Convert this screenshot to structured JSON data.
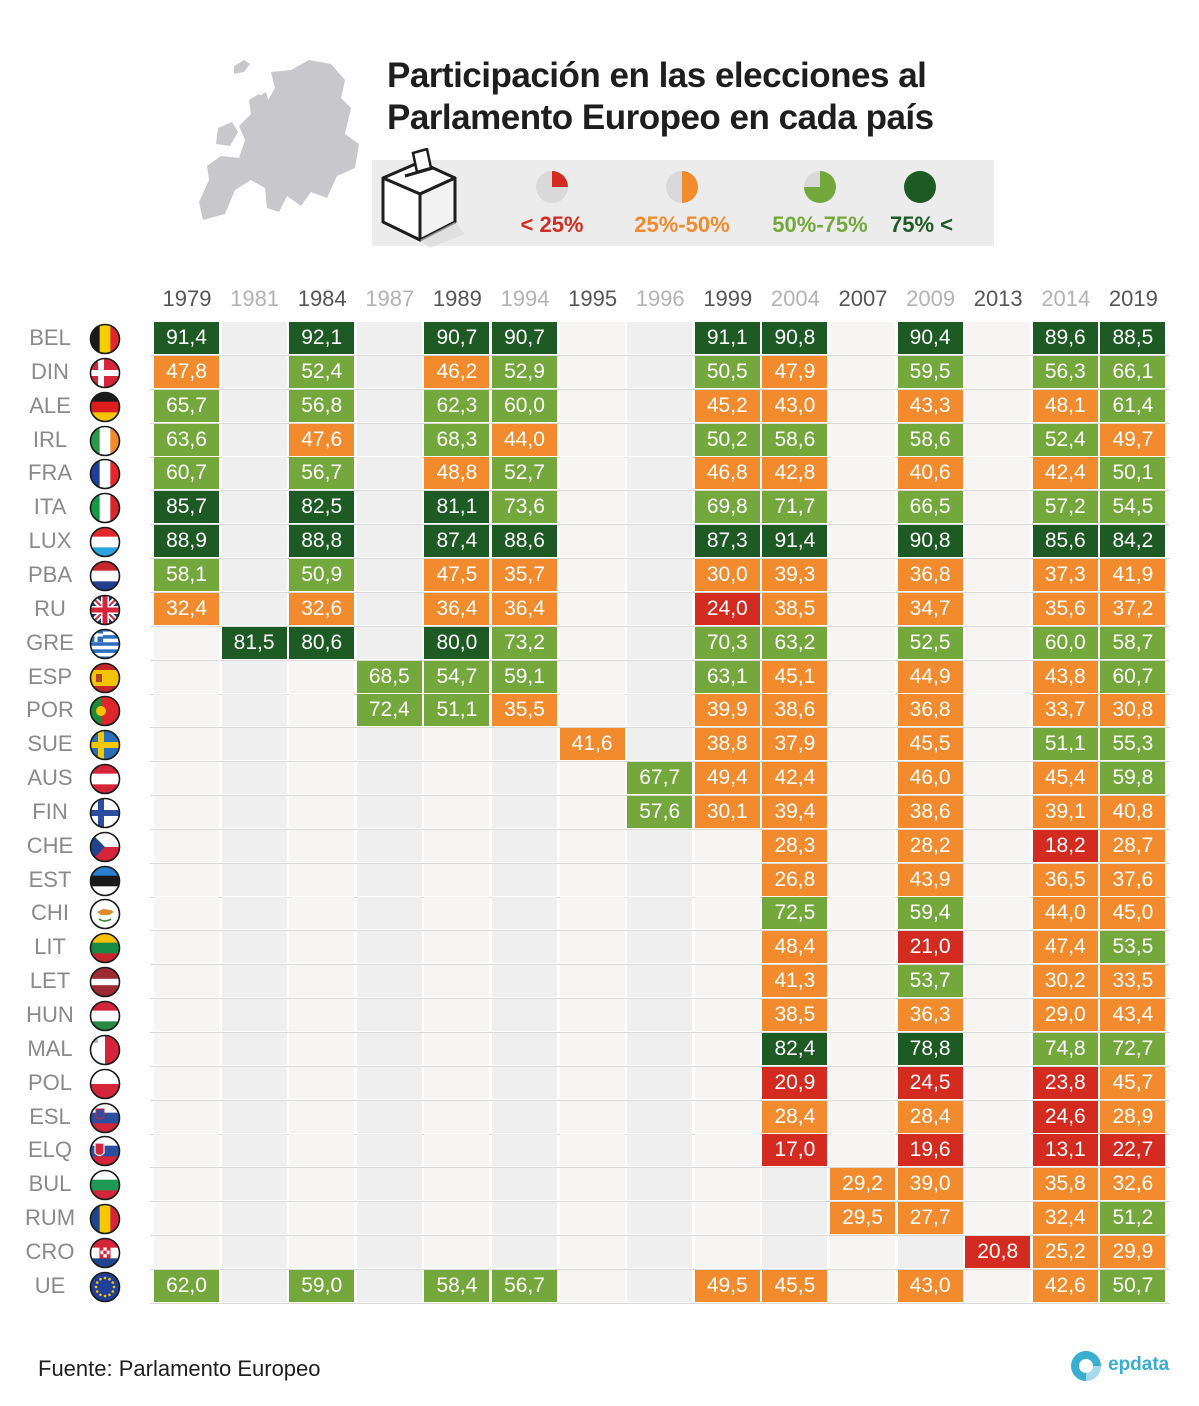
{
  "title": "Participación en las elecciones al Parlamento Europeo en cada país",
  "legend": [
    {
      "label": "< 25%",
      "color": "#d42b20"
    },
    {
      "label": "25%-50%",
      "color": "#f28a2e"
    },
    {
      "label": "50%-75%",
      "color": "#74a83c"
    },
    {
      "label": "75% <",
      "color": "#1d5a24"
    }
  ],
  "colors": {
    "low": "#d42b20",
    "mid_low": "#f28a2e",
    "mid_high": "#74a83c",
    "high": "#1d5a24",
    "empty_band_a": "#f7f4f4",
    "empty_band_b": "#efefef",
    "year_dark": "#555555",
    "year_light": "#b3b3b3"
  },
  "source": "Fuente: Parlamento Europeo",
  "logo_text": "epdata",
  "chart_data": {
    "type": "table",
    "title": "Participación en las elecciones al Parlamento Europeo en cada país",
    "unit": "%",
    "years": [
      "1979",
      "1981",
      "1984",
      "1987",
      "1989",
      "1994",
      "1995",
      "1996",
      "1999",
      "2004",
      "2007",
      "2009",
      "2013",
      "2014",
      "2019"
    ],
    "rows": [
      {
        "country": "BEL",
        "flag": "belgium-flag-icon",
        "values": [
          "91,4",
          null,
          "92,1",
          null,
          "90,7",
          "90,7",
          null,
          null,
          "91,1",
          "90,8",
          null,
          "90,4",
          null,
          "89,6",
          "88,5"
        ]
      },
      {
        "country": "DIN",
        "flag": "denmark-flag-icon",
        "values": [
          "47,8",
          null,
          "52,4",
          null,
          "46,2",
          "52,9",
          null,
          null,
          "50,5",
          "47,9",
          null,
          "59,5",
          null,
          "56,3",
          "66,1"
        ]
      },
      {
        "country": "ALE",
        "flag": "germany-flag-icon",
        "values": [
          "65,7",
          null,
          "56,8",
          null,
          "62,3",
          "60,0",
          null,
          null,
          "45,2",
          "43,0",
          null,
          "43,3",
          null,
          "48,1",
          "61,4"
        ]
      },
      {
        "country": "IRL",
        "flag": "ireland-flag-icon",
        "values": [
          "63,6",
          null,
          "47,6",
          null,
          "68,3",
          "44,0",
          null,
          null,
          "50,2",
          "58,6",
          null,
          "58,6",
          null,
          "52,4",
          "49,7"
        ]
      },
      {
        "country": "FRA",
        "flag": "france-flag-icon",
        "values": [
          "60,7",
          null,
          "56,7",
          null,
          "48,8",
          "52,7",
          null,
          null,
          "46,8",
          "42,8",
          null,
          "40,6",
          null,
          "42,4",
          "50,1"
        ]
      },
      {
        "country": "ITA",
        "flag": "italy-flag-icon",
        "values": [
          "85,7",
          null,
          "82,5",
          null,
          "81,1",
          "73,6",
          null,
          null,
          "69,8",
          "71,7",
          null,
          "66,5",
          null,
          "57,2",
          "54,5"
        ]
      },
      {
        "country": "LUX",
        "flag": "luxembourg-flag-icon",
        "values": [
          "88,9",
          null,
          "88,8",
          null,
          "87,4",
          "88,6",
          null,
          null,
          "87,3",
          "91,4",
          null,
          "90,8",
          null,
          "85,6",
          "84,2"
        ]
      },
      {
        "country": "PBA",
        "flag": "netherlands-flag-icon",
        "values": [
          "58,1",
          null,
          "50,9",
          null,
          "47,5",
          "35,7",
          null,
          null,
          "30,0",
          "39,3",
          null,
          "36,8",
          null,
          "37,3",
          "41,9"
        ]
      },
      {
        "country": "RU",
        "flag": "uk-flag-icon",
        "values": [
          "32,4",
          null,
          "32,6",
          null,
          "36,4",
          "36,4",
          null,
          null,
          "24,0",
          "38,5",
          null,
          "34,7",
          null,
          "35,6",
          "37,2"
        ]
      },
      {
        "country": "GRE",
        "flag": "greece-flag-icon",
        "values": [
          null,
          "81,5",
          "80,6",
          null,
          "80,0",
          "73,2",
          null,
          null,
          "70,3",
          "63,2",
          null,
          "52,5",
          null,
          "60,0",
          "58,7"
        ]
      },
      {
        "country": "ESP",
        "flag": "spain-flag-icon",
        "values": [
          null,
          null,
          null,
          "68,5",
          "54,7",
          "59,1",
          null,
          null,
          "63,1",
          "45,1",
          null,
          "44,9",
          null,
          "43,8",
          "60,7"
        ]
      },
      {
        "country": "POR",
        "flag": "portugal-flag-icon",
        "values": [
          null,
          null,
          null,
          "72,4",
          "51,1",
          "35,5",
          null,
          null,
          "39,9",
          "38,6",
          null,
          "36,8",
          null,
          "33,7",
          "30,8"
        ]
      },
      {
        "country": "SUE",
        "flag": "sweden-flag-icon",
        "values": [
          null,
          null,
          null,
          null,
          null,
          null,
          "41,6",
          null,
          "38,8",
          "37,9",
          null,
          "45,5",
          null,
          "51,1",
          "55,3"
        ]
      },
      {
        "country": "AUS",
        "flag": "austria-flag-icon",
        "values": [
          null,
          null,
          null,
          null,
          null,
          null,
          null,
          "67,7",
          "49,4",
          "42,4",
          null,
          "46,0",
          null,
          "45,4",
          "59,8"
        ]
      },
      {
        "country": "FIN",
        "flag": "finland-flag-icon",
        "values": [
          null,
          null,
          null,
          null,
          null,
          null,
          null,
          "57,6",
          "30,1",
          "39,4",
          null,
          "38,6",
          null,
          "39,1",
          "40,8"
        ]
      },
      {
        "country": "CHE",
        "flag": "czechia-flag-icon",
        "values": [
          null,
          null,
          null,
          null,
          null,
          null,
          null,
          null,
          null,
          "28,3",
          null,
          "28,2",
          null,
          "18,2",
          "28,7"
        ]
      },
      {
        "country": "EST",
        "flag": "estonia-flag-icon",
        "values": [
          null,
          null,
          null,
          null,
          null,
          null,
          null,
          null,
          null,
          "26,8",
          null,
          "43,9",
          null,
          "36,5",
          "37,6"
        ]
      },
      {
        "country": "CHI",
        "flag": "cyprus-flag-icon",
        "values": [
          null,
          null,
          null,
          null,
          null,
          null,
          null,
          null,
          null,
          "72,5",
          null,
          "59,4",
          null,
          "44,0",
          "45,0"
        ]
      },
      {
        "country": "LIT",
        "flag": "lithuania-flag-icon",
        "values": [
          null,
          null,
          null,
          null,
          null,
          null,
          null,
          null,
          null,
          "48,4",
          null,
          "21,0",
          null,
          "47,4",
          "53,5"
        ]
      },
      {
        "country": "LET",
        "flag": "latvia-flag-icon",
        "values": [
          null,
          null,
          null,
          null,
          null,
          null,
          null,
          null,
          null,
          "41,3",
          null,
          "53,7",
          null,
          "30,2",
          "33,5"
        ]
      },
      {
        "country": "HUN",
        "flag": "hungary-flag-icon",
        "values": [
          null,
          null,
          null,
          null,
          null,
          null,
          null,
          null,
          null,
          "38,5",
          null,
          "36,3",
          null,
          "29,0",
          "43,4"
        ]
      },
      {
        "country": "MAL",
        "flag": "malta-flag-icon",
        "values": [
          null,
          null,
          null,
          null,
          null,
          null,
          null,
          null,
          null,
          "82,4",
          null,
          "78,8",
          null,
          "74,8",
          "72,7"
        ]
      },
      {
        "country": "POL",
        "flag": "poland-flag-icon",
        "values": [
          null,
          null,
          null,
          null,
          null,
          null,
          null,
          null,
          null,
          "20,9",
          null,
          "24,5",
          null,
          "23,8",
          "45,7"
        ]
      },
      {
        "country": "ESL",
        "flag": "slovenia-flag-icon",
        "values": [
          null,
          null,
          null,
          null,
          null,
          null,
          null,
          null,
          null,
          "28,4",
          null,
          "28,4",
          null,
          "24,6",
          "28,9"
        ]
      },
      {
        "country": "ELQ",
        "flag": "slovakia-flag-icon",
        "values": [
          null,
          null,
          null,
          null,
          null,
          null,
          null,
          null,
          null,
          "17,0",
          null,
          "19,6",
          null,
          "13,1",
          "22,7"
        ]
      },
      {
        "country": "BUL",
        "flag": "bulgaria-flag-icon",
        "values": [
          null,
          null,
          null,
          null,
          null,
          null,
          null,
          null,
          null,
          null,
          "29,2",
          "39,0",
          null,
          "35,8",
          "32,6"
        ]
      },
      {
        "country": "RUM",
        "flag": "romania-flag-icon",
        "values": [
          null,
          null,
          null,
          null,
          null,
          null,
          null,
          null,
          null,
          null,
          "29,5",
          "27,7",
          null,
          "32,4",
          "51,2"
        ]
      },
      {
        "country": "CRO",
        "flag": "croatia-flag-icon",
        "values": [
          null,
          null,
          null,
          null,
          null,
          null,
          null,
          null,
          null,
          null,
          null,
          null,
          "20,8",
          "25,2",
          "29,9"
        ]
      },
      {
        "country": "UE",
        "flag": "eu-flag-icon",
        "values": [
          "62,0",
          null,
          "59,0",
          null,
          "58,4",
          "56,7",
          null,
          null,
          "49,5",
          "45,5",
          null,
          "43,0",
          null,
          "42,6",
          "50,7"
        ]
      }
    ]
  }
}
